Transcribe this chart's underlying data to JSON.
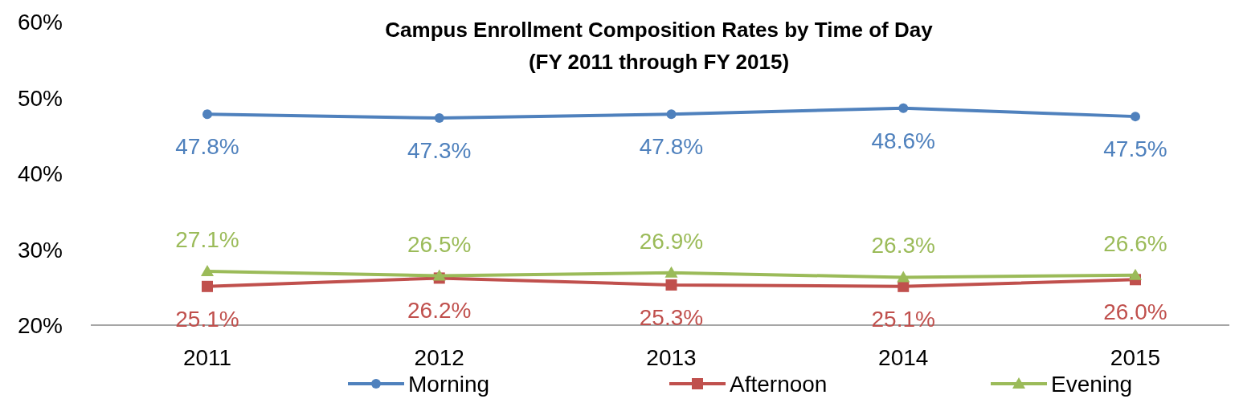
{
  "chart_data": {
    "type": "line",
    "title": "Campus Enrollment Composition Rates by Time of Day",
    "subtitle": "(FY 2011 through FY 2015)",
    "categories": [
      "2011",
      "2012",
      "2013",
      "2014",
      "2015"
    ],
    "ylim": [
      20,
      60
    ],
    "yticks": [
      {
        "value": 20,
        "label": "20%"
      },
      {
        "value": 30,
        "label": "30%"
      },
      {
        "value": 40,
        "label": "40%"
      },
      {
        "value": 50,
        "label": "50%"
      },
      {
        "value": 60,
        "label": "60%"
      }
    ],
    "grid": false,
    "legend": "bottom",
    "line_style": "solid",
    "series": [
      {
        "name": "Morning",
        "color": "#4f81bd",
        "marker": "circle",
        "values": [
          47.8,
          47.3,
          47.8,
          48.6,
          47.5
        ],
        "value_labels": [
          "47.8%",
          "47.3%",
          "47.8%",
          "48.6%",
          "47.5%"
        ]
      },
      {
        "name": "Afternoon",
        "color": "#c0504d",
        "marker": "square",
        "values": [
          25.1,
          26.2,
          25.3,
          25.1,
          26.0
        ],
        "value_labels": [
          "25.1%",
          "26.2%",
          "25.3%",
          "25.1%",
          "26.0%"
        ]
      },
      {
        "name": "Evening",
        "color": "#9bbb59",
        "marker": "triangle",
        "values": [
          27.1,
          26.5,
          26.9,
          26.3,
          26.6
        ],
        "value_labels": [
          "27.1%",
          "26.5%",
          "26.9%",
          "26.3%",
          "26.6%"
        ]
      }
    ]
  }
}
